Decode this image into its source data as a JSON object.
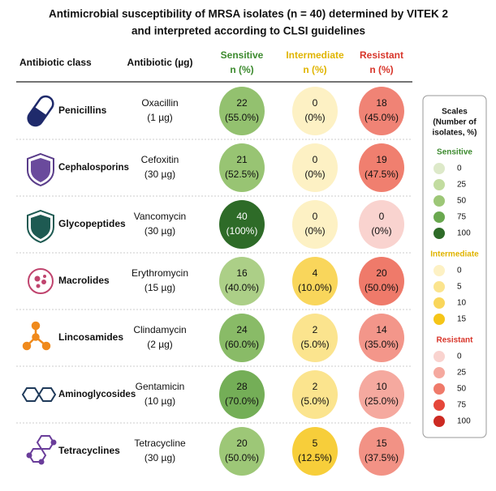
{
  "title_lines": [
    "Antimicrobial susceptibility of MRSA isolates (n = 40) determined by VITEK 2",
    "and interpreted according to CLSI guidelines"
  ],
  "header": {
    "class": "Antibiotic class",
    "antibiotic": "Antibiotic (µg)",
    "sensitive": {
      "name": "Sensitive",
      "sub": "n (%)",
      "color": "#3c8a2e"
    },
    "intermediate": {
      "name": "Intermediate",
      "sub": "n (%)",
      "color": "#e0b400"
    },
    "resistant": {
      "name": "Resistant",
      "sub": "n (%)",
      "color": "#d8362b"
    }
  },
  "table": {
    "rows": [
      {
        "class": "Penicillins",
        "antibiotic": "Oxacillin",
        "dose": "(1 µg)",
        "sensitive": {
          "n": 22,
          "pct": 55.0,
          "pct_label": "(55.0%)"
        },
        "intermediate": {
          "n": 0,
          "pct": 0,
          "pct_label": "(0%)"
        },
        "resistant": {
          "n": 18,
          "pct": 45.0,
          "pct_label": "(45.0%)"
        }
      },
      {
        "class": "Cephalosporins",
        "antibiotic": "Cefoxitin",
        "dose": "(30 µg)",
        "sensitive": {
          "n": 21,
          "pct": 52.5,
          "pct_label": "(52.5%)"
        },
        "intermediate": {
          "n": 0,
          "pct": 0,
          "pct_label": "(0%)"
        },
        "resistant": {
          "n": 19,
          "pct": 47.5,
          "pct_label": "(47.5%)"
        }
      },
      {
        "class": "Glycopeptides",
        "antibiotic": "Vancomycin",
        "dose": "(30 µg)",
        "sensitive": {
          "n": 40,
          "pct": 100,
          "pct_label": "(100%)"
        },
        "intermediate": {
          "n": 0,
          "pct": 0,
          "pct_label": "(0%)"
        },
        "resistant": {
          "n": 0,
          "pct": 0,
          "pct_label": "(0%)"
        }
      },
      {
        "class": "Macrolides",
        "antibiotic": "Erythromycin",
        "dose": "(15 µg)",
        "sensitive": {
          "n": 16,
          "pct": 40.0,
          "pct_label": "(40.0%)"
        },
        "intermediate": {
          "n": 4,
          "pct": 10.0,
          "pct_label": "(10.0%)"
        },
        "resistant": {
          "n": 20,
          "pct": 50.0,
          "pct_label": "(50.0%)"
        }
      },
      {
        "class": "Lincosamides",
        "antibiotic": "Clindamycin",
        "dose": "(2 µg)",
        "sensitive": {
          "n": 24,
          "pct": 60.0,
          "pct_label": "(60.0%)"
        },
        "intermediate": {
          "n": 2,
          "pct": 5.0,
          "pct_label": "(5.0%)"
        },
        "resistant": {
          "n": 14,
          "pct": 35.0,
          "pct_label": "(35.0%)"
        }
      },
      {
        "class": "Aminoglycosides",
        "antibiotic": "Gentamicin",
        "dose": "(10 µg)",
        "sensitive": {
          "n": 28,
          "pct": 70.0,
          "pct_label": "(70.0%)"
        },
        "intermediate": {
          "n": 2,
          "pct": 5.0,
          "pct_label": "(5.0%)"
        },
        "resistant": {
          "n": 10,
          "pct": 25.0,
          "pct_label": "(25.0%)"
        }
      },
      {
        "class": "Tetracyclines",
        "antibiotic": "Tetracycline",
        "dose": "(30 µg)",
        "sensitive": {
          "n": 20,
          "pct": 50.0,
          "pct_label": "(50.0%)"
        },
        "intermediate": {
          "n": 5,
          "pct": 12.5,
          "pct_label": "(12.5%)"
        },
        "resistant": {
          "n": 15,
          "pct": 37.5,
          "pct_label": "(37.5%)"
        }
      }
    ]
  },
  "legend": {
    "title_lines": [
      "Scales",
      "(Number of",
      "isolates, %)"
    ],
    "sensitive": {
      "name": "Sensitive",
      "values": [
        0,
        25,
        50,
        75,
        100
      ],
      "colors": [
        "#dde9c9",
        "#c2dca0",
        "#9dc777",
        "#6aa84f",
        "#2e6b28"
      ]
    },
    "intermediate": {
      "name": "Intermediate",
      "values": [
        0,
        5,
        10,
        15
      ],
      "colors": [
        "#fdf1c4",
        "#fbe48e",
        "#f9d65b",
        "#f5c518"
      ]
    },
    "resistant": {
      "name": "Resistant",
      "values": [
        0,
        25,
        50,
        75,
        100
      ],
      "colors": [
        "#f9d3cf",
        "#f5a99f",
        "#ef7a6a",
        "#e5473a",
        "#cc2a22"
      ]
    }
  }
}
